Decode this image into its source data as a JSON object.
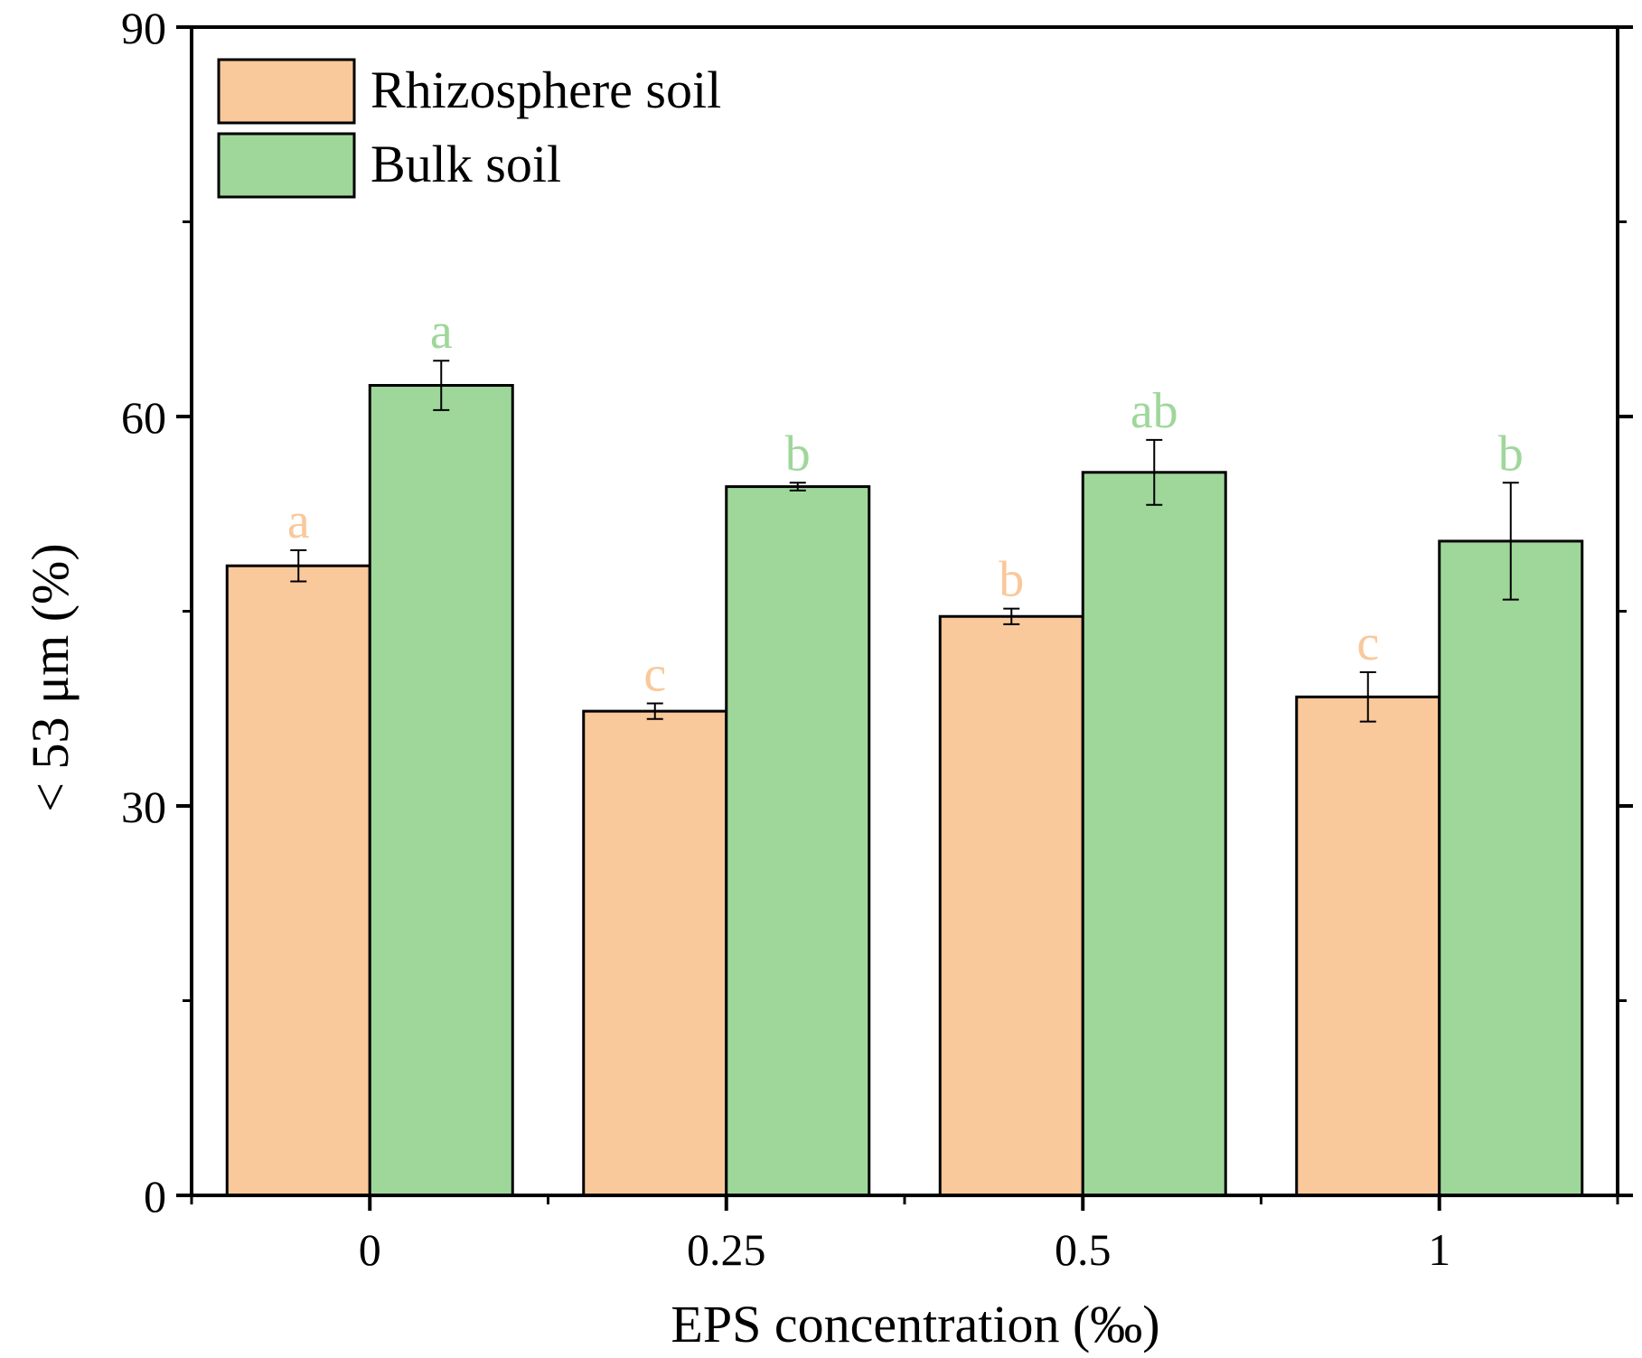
{
  "chart_data": {
    "type": "bar",
    "title": "",
    "xlabel": "EPS concentration (‰)",
    "ylabel": "< 53 μm (%)",
    "categories": [
      "0",
      "0.25",
      "0.5",
      "1"
    ],
    "ylim": [
      0,
      90
    ],
    "yticks": [
      0,
      30,
      60,
      90
    ],
    "grid": false,
    "legend_position": "top-left",
    "series": [
      {
        "name": "Rhizosphere soil",
        "color": "#f9c89b",
        "values": [
          48.5,
          37.3,
          44.6,
          38.4
        ],
        "errors": [
          1.2,
          0.6,
          0.6,
          1.9
        ],
        "letters": [
          "a",
          "c",
          "b",
          "c"
        ]
      },
      {
        "name": "Bulk soil",
        "color": "#9fd79b",
        "values": [
          62.4,
          54.6,
          55.7,
          50.4
        ],
        "errors": [
          1.9,
          0.3,
          2.5,
          4.5
        ],
        "letters": [
          "a",
          "b",
          "ab",
          "b"
        ]
      }
    ]
  }
}
